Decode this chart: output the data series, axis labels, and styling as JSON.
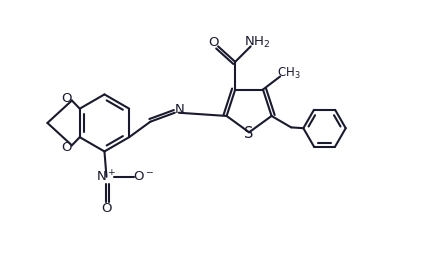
{
  "bg_color": "#ffffff",
  "line_color": "#1a1a2e",
  "line_width": 1.5,
  "font_size": 9.5,
  "figsize": [
    4.33,
    2.54
  ],
  "dpi": 100,
  "xlim": [
    0,
    10.5
  ],
  "ylim": [
    0,
    6.2
  ]
}
